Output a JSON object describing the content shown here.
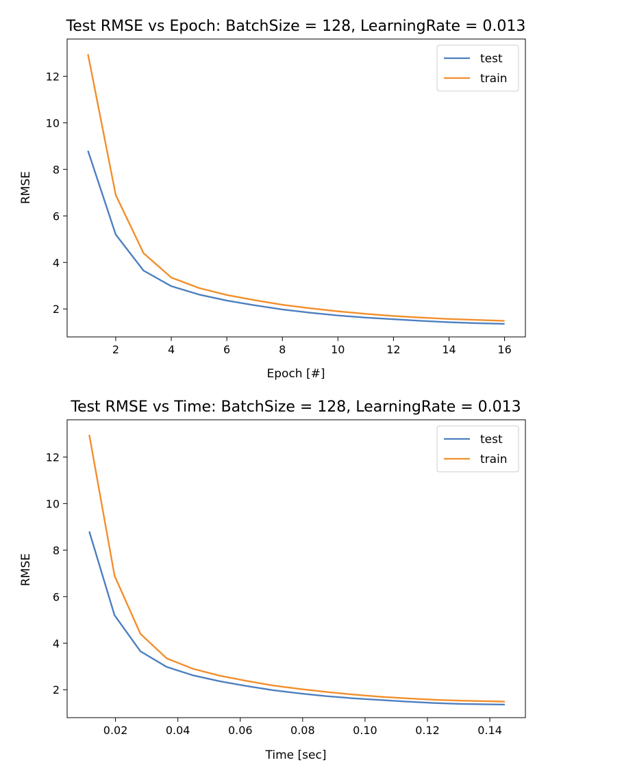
{
  "chart_data": [
    {
      "type": "line",
      "title": "Test RMSE vs Epoch: BatchSize = 128, LearningRate = 0.013",
      "xlabel": "Epoch [#]",
      "ylabel": "RMSE",
      "xlim": [
        0.25,
        16.75
      ],
      "ylim": [
        0.8,
        13.6
      ],
      "xticks": [
        2,
        4,
        6,
        8,
        10,
        12,
        14,
        16
      ],
      "xtick_labels": [
        "2",
        "4",
        "6",
        "8",
        "10",
        "12",
        "14",
        "16"
      ],
      "yticks": [
        2,
        4,
        6,
        8,
        10,
        12
      ],
      "ytick_labels": [
        "2",
        "4",
        "6",
        "8",
        "10",
        "12"
      ],
      "grid": false,
      "legend": "top-right",
      "x": [
        1,
        2,
        3,
        4,
        5,
        6,
        7,
        8,
        9,
        10,
        11,
        12,
        13,
        14,
        15,
        16
      ],
      "series": [
        {
          "name": "test",
          "color": "#4C7FBF",
          "values": [
            8.8,
            5.2,
            3.65,
            2.98,
            2.62,
            2.36,
            2.16,
            1.98,
            1.84,
            1.72,
            1.63,
            1.56,
            1.49,
            1.43,
            1.39,
            1.36
          ]
        },
        {
          "name": "train",
          "color": "#F28E2B",
          "values": [
            12.95,
            6.9,
            4.4,
            3.35,
            2.9,
            2.6,
            2.38,
            2.18,
            2.03,
            1.9,
            1.79,
            1.7,
            1.63,
            1.57,
            1.53,
            1.49
          ]
        }
      ]
    },
    {
      "type": "line",
      "title": "Test RMSE vs Time: BatchSize = 128, LearningRate = 0.013",
      "xlabel": "Time [sec]",
      "ylabel": "RMSE",
      "xlim": [
        0.0045,
        0.1514
      ],
      "ylim": [
        0.8,
        13.6
      ],
      "xticks": [
        0.02,
        0.04,
        0.06,
        0.08,
        0.1,
        0.12,
        0.14
      ],
      "xtick_labels": [
        "0.02",
        "0.04",
        "0.06",
        "0.08",
        "0.10",
        "0.12",
        "0.14"
      ],
      "yticks": [
        2,
        4,
        6,
        8,
        10,
        12
      ],
      "ytick_labels": [
        "2",
        "4",
        "6",
        "8",
        "10",
        "12"
      ],
      "grid": false,
      "legend": "top-right",
      "x": [
        0.0116,
        0.0197,
        0.028,
        0.0364,
        0.0448,
        0.0535,
        0.062,
        0.0705,
        0.0792,
        0.0878,
        0.0963,
        0.1048,
        0.1133,
        0.1219,
        0.1305,
        0.1448
      ],
      "series": [
        {
          "name": "test",
          "color": "#4C7FBF",
          "values": [
            8.8,
            5.2,
            3.65,
            2.98,
            2.62,
            2.36,
            2.16,
            1.98,
            1.84,
            1.72,
            1.63,
            1.56,
            1.49,
            1.43,
            1.39,
            1.36
          ]
        },
        {
          "name": "train",
          "color": "#F28E2B",
          "values": [
            12.95,
            6.9,
            4.4,
            3.35,
            2.9,
            2.6,
            2.38,
            2.18,
            2.03,
            1.9,
            1.79,
            1.7,
            1.63,
            1.57,
            1.53,
            1.49
          ]
        }
      ]
    }
  ]
}
